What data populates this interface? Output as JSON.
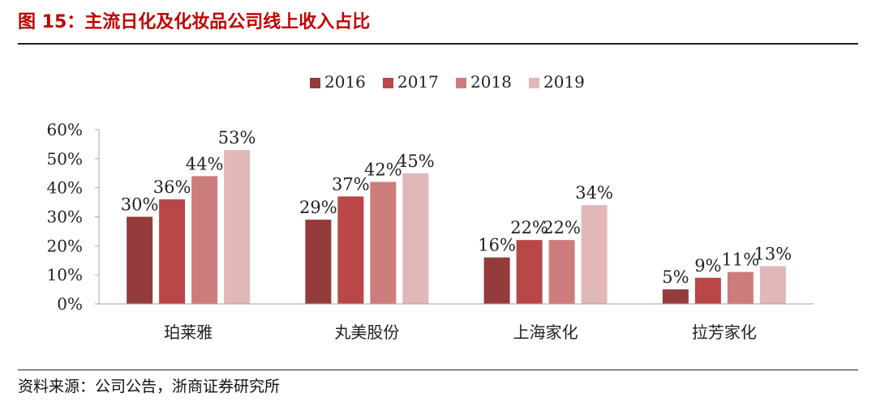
{
  "figure": {
    "title": "图 15：主流日化及化妆品公司线上收入占比",
    "source": "资料来源：公司公告，浙商证券研究所"
  },
  "colors": {
    "title": "#c00000",
    "series": [
      "#943b3b",
      "#b94747",
      "#cd7c7c",
      "#e2b7b7"
    ]
  },
  "chart_data": {
    "type": "bar",
    "title": "",
    "xlabel": "",
    "ylabel": "",
    "categories": [
      "珀莱雅",
      "丸美股份",
      "上海家化",
      "拉芳家化"
    ],
    "series": [
      {
        "name": "2016",
        "values": [
          30,
          29,
          16,
          5
        ],
        "labels": [
          "30%",
          "29%",
          "16%",
          "5%"
        ]
      },
      {
        "name": "2017",
        "values": [
          36,
          37,
          22,
          9
        ],
        "labels": [
          "36%",
          "37%",
          "22%",
          "9%"
        ]
      },
      {
        "name": "2018",
        "values": [
          44,
          42,
          22,
          11
        ],
        "labels": [
          "44%",
          "42%",
          "22%",
          "11%"
        ]
      },
      {
        "name": "2019",
        "values": [
          53,
          45,
          34,
          13
        ],
        "labels": [
          "53%",
          "45%",
          "34%",
          "13%"
        ]
      }
    ],
    "ylim": [
      0,
      60
    ],
    "yticks": [
      0,
      10,
      20,
      30,
      40,
      50,
      60
    ],
    "ytick_labels": [
      "0%",
      "10%",
      "20%",
      "30%",
      "40%",
      "50%",
      "60%"
    ],
    "legend": "top-center",
    "grid": false
  }
}
